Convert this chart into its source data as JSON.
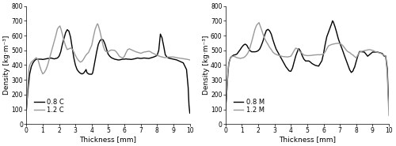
{
  "left": {
    "xlabel": "Thickness [mm]",
    "ylabel": "Density [kg·m⁻³]",
    "xlim": [
      0,
      10
    ],
    "ylim": [
      0,
      800
    ],
    "yticks": [
      0,
      100,
      200,
      300,
      400,
      500,
      600,
      700,
      800
    ],
    "xticks": [
      0,
      1,
      2,
      3,
      4,
      5,
      6,
      7,
      8,
      9,
      10
    ],
    "legend": [
      "0.8 C",
      "1.2 C"
    ],
    "color_08": "#000000",
    "color_12": "#999999",
    "x_08": [
      0.0,
      0.05,
      0.12,
      0.2,
      0.3,
      0.4,
      0.5,
      0.6,
      0.7,
      0.8,
      0.9,
      1.0,
      1.1,
      1.2,
      1.3,
      1.4,
      1.5,
      1.6,
      1.7,
      1.8,
      1.9,
      2.0,
      2.1,
      2.2,
      2.3,
      2.4,
      2.5,
      2.6,
      2.7,
      2.8,
      2.9,
      3.0,
      3.1,
      3.2,
      3.3,
      3.4,
      3.5,
      3.6,
      3.65,
      3.7,
      3.8,
      3.9,
      4.0,
      4.05,
      4.1,
      4.2,
      4.3,
      4.4,
      4.5,
      4.6,
      4.7,
      4.8,
      4.9,
      5.0,
      5.1,
      5.2,
      5.4,
      5.5,
      5.6,
      5.7,
      5.8,
      5.9,
      6.0,
      6.1,
      6.2,
      6.3,
      6.4,
      6.5,
      6.6,
      6.7,
      6.8,
      7.0,
      7.2,
      7.5,
      7.8,
      8.0,
      8.1,
      8.15,
      8.2,
      8.3,
      8.4,
      8.5,
      8.6,
      8.7,
      8.8,
      9.0,
      9.2,
      9.4,
      9.6,
      9.8,
      9.9,
      9.95,
      10.0
    ],
    "y_08": [
      100,
      170,
      260,
      340,
      390,
      415,
      430,
      440,
      440,
      440,
      440,
      438,
      440,
      442,
      445,
      445,
      448,
      445,
      442,
      445,
      448,
      460,
      490,
      540,
      580,
      620,
      640,
      630,
      590,
      520,
      450,
      400,
      370,
      355,
      345,
      340,
      345,
      360,
      370,
      350,
      340,
      338,
      338,
      345,
      370,
      430,
      490,
      540,
      565,
      575,
      570,
      545,
      510,
      475,
      460,
      450,
      440,
      438,
      435,
      435,
      438,
      440,
      440,
      442,
      440,
      440,
      438,
      440,
      442,
      445,
      448,
      445,
      448,
      445,
      455,
      465,
      500,
      555,
      610,
      585,
      530,
      470,
      455,
      448,
      445,
      440,
      435,
      425,
      415,
      370,
      250,
      130,
      75
    ],
    "x_12": [
      0.0,
      0.05,
      0.1,
      0.15,
      0.2,
      0.3,
      0.4,
      0.5,
      0.6,
      0.7,
      0.8,
      0.9,
      1.0,
      1.1,
      1.2,
      1.3,
      1.4,
      1.5,
      1.6,
      1.7,
      1.8,
      1.9,
      2.0,
      2.05,
      2.1,
      2.2,
      2.3,
      2.4,
      2.5,
      2.6,
      2.7,
      2.8,
      2.9,
      3.0,
      3.1,
      3.2,
      3.3,
      3.4,
      3.5,
      3.6,
      3.7,
      3.8,
      3.9,
      4.0,
      4.1,
      4.2,
      4.3,
      4.35,
      4.4,
      4.5,
      4.6,
      4.7,
      4.8,
      4.9,
      5.0,
      5.1,
      5.2,
      5.4,
      5.5,
      5.6,
      5.7,
      5.9,
      6.0,
      6.1,
      6.2,
      6.3,
      6.5,
      6.7,
      7.0,
      7.2,
      7.5,
      7.6,
      7.7,
      7.8,
      7.9,
      8.0,
      8.1,
      8.2,
      8.3,
      8.5,
      8.7,
      9.0,
      9.2,
      9.5,
      9.8,
      10.0
    ],
    "y_12": [
      100,
      180,
      290,
      370,
      400,
      420,
      430,
      440,
      450,
      440,
      400,
      365,
      340,
      350,
      370,
      400,
      440,
      480,
      520,
      560,
      600,
      645,
      660,
      665,
      650,
      610,
      565,
      530,
      505,
      510,
      515,
      510,
      490,
      465,
      445,
      430,
      420,
      425,
      440,
      460,
      475,
      485,
      510,
      535,
      590,
      640,
      670,
      680,
      670,
      630,
      580,
      530,
      500,
      490,
      490,
      498,
      502,
      500,
      490,
      475,
      458,
      448,
      460,
      485,
      505,
      510,
      500,
      490,
      480,
      488,
      494,
      490,
      482,
      478,
      472,
      467,
      462,
      458,
      455,
      450,
      455,
      455,
      450,
      445,
      440,
      435
    ]
  },
  "right": {
    "xlabel": "Thickness [mm]",
    "ylabel": "Density [kg·m⁻³]",
    "xlim": [
      0,
      10
    ],
    "ylim": [
      0,
      800
    ],
    "yticks": [
      0,
      100,
      200,
      300,
      400,
      500,
      600,
      700,
      800
    ],
    "xticks": [
      0,
      1,
      2,
      3,
      4,
      5,
      6,
      7,
      8,
      9,
      10
    ],
    "legend": [
      "0.8 M",
      "1.2 M"
    ],
    "color_08": "#000000",
    "color_12": "#999999",
    "x_08": [
      0.0,
      0.05,
      0.1,
      0.15,
      0.2,
      0.3,
      0.4,
      0.5,
      0.6,
      0.7,
      0.8,
      0.9,
      1.0,
      1.1,
      1.2,
      1.3,
      1.4,
      1.5,
      1.6,
      1.7,
      1.8,
      1.9,
      2.0,
      2.1,
      2.2,
      2.3,
      2.4,
      2.5,
      2.6,
      2.7,
      2.8,
      2.9,
      3.0,
      3.1,
      3.2,
      3.3,
      3.5,
      3.7,
      3.9,
      4.0,
      4.1,
      4.2,
      4.3,
      4.4,
      4.45,
      4.5,
      4.6,
      4.7,
      4.8,
      4.9,
      5.0,
      5.1,
      5.2,
      5.3,
      5.5,
      5.7,
      5.9,
      6.0,
      6.1,
      6.2,
      6.3,
      6.4,
      6.5,
      6.55,
      6.6,
      6.7,
      6.8,
      6.9,
      7.0,
      7.1,
      7.2,
      7.3,
      7.4,
      7.5,
      7.6,
      7.7,
      7.8,
      7.85,
      7.9,
      8.0,
      8.1,
      8.2,
      8.5,
      8.7,
      9.0,
      9.3,
      9.5,
      9.6,
      9.7,
      9.75,
      9.8,
      9.9,
      10.0
    ],
    "y_08": [
      100,
      170,
      260,
      350,
      410,
      450,
      460,
      468,
      470,
      475,
      490,
      505,
      522,
      535,
      542,
      535,
      515,
      498,
      490,
      490,
      490,
      492,
      498,
      510,
      535,
      565,
      605,
      635,
      642,
      632,
      610,
      572,
      538,
      508,
      488,
      468,
      428,
      388,
      360,
      358,
      380,
      422,
      462,
      492,
      508,
      510,
      492,
      462,
      440,
      428,
      428,
      428,
      420,
      410,
      398,
      393,
      430,
      478,
      540,
      592,
      622,
      652,
      682,
      700,
      692,
      660,
      622,
      580,
      548,
      520,
      490,
      458,
      428,
      398,
      368,
      350,
      360,
      375,
      385,
      425,
      462,
      492,
      488,
      460,
      488,
      488,
      482,
      478,
      462,
      460,
      462,
      378,
      100
    ],
    "x_12": [
      0.0,
      0.05,
      0.1,
      0.15,
      0.2,
      0.3,
      0.4,
      0.5,
      0.6,
      0.7,
      0.8,
      0.9,
      1.0,
      1.1,
      1.2,
      1.3,
      1.4,
      1.5,
      1.6,
      1.7,
      1.8,
      1.9,
      2.0,
      2.05,
      2.1,
      2.2,
      2.3,
      2.4,
      2.5,
      2.6,
      2.7,
      2.8,
      2.9,
      3.0,
      3.1,
      3.2,
      3.5,
      3.8,
      4.0,
      4.1,
      4.2,
      4.3,
      4.4,
      4.5,
      4.6,
      4.7,
      4.8,
      5.0,
      5.2,
      5.4,
      5.6,
      5.8,
      6.0,
      6.1,
      6.2,
      6.3,
      6.5,
      6.7,
      6.9,
      7.0,
      7.1,
      7.2,
      7.3,
      7.4,
      7.5,
      7.6,
      7.65,
      7.7,
      7.8,
      7.9,
      8.0,
      8.1,
      8.2,
      8.5,
      8.8,
      9.0,
      9.2,
      9.5,
      9.8,
      9.9,
      9.95,
      10.0
    ],
    "y_12": [
      100,
      170,
      260,
      355,
      415,
      452,
      458,
      460,
      456,
      450,
      448,
      445,
      448,
      450,
      458,
      470,
      488,
      520,
      558,
      600,
      642,
      670,
      682,
      688,
      672,
      642,
      608,
      578,
      558,
      540,
      520,
      505,
      488,
      478,
      472,
      468,
      458,
      455,
      460,
      478,
      498,
      515,
      510,
      498,
      488,
      478,
      468,
      464,
      465,
      468,
      470,
      470,
      474,
      490,
      510,
      530,
      540,
      545,
      548,
      545,
      540,
      530,
      515,
      500,
      490,
      485,
      480,
      475,
      468,
      458,
      448,
      468,
      488,
      498,
      505,
      500,
      490,
      480,
      460,
      348,
      198,
      58
    ]
  },
  "line_width": 1.0,
  "font_size_label": 6.5,
  "font_size_tick": 5.5,
  "font_size_legend": 6,
  "background_color": "#ffffff"
}
